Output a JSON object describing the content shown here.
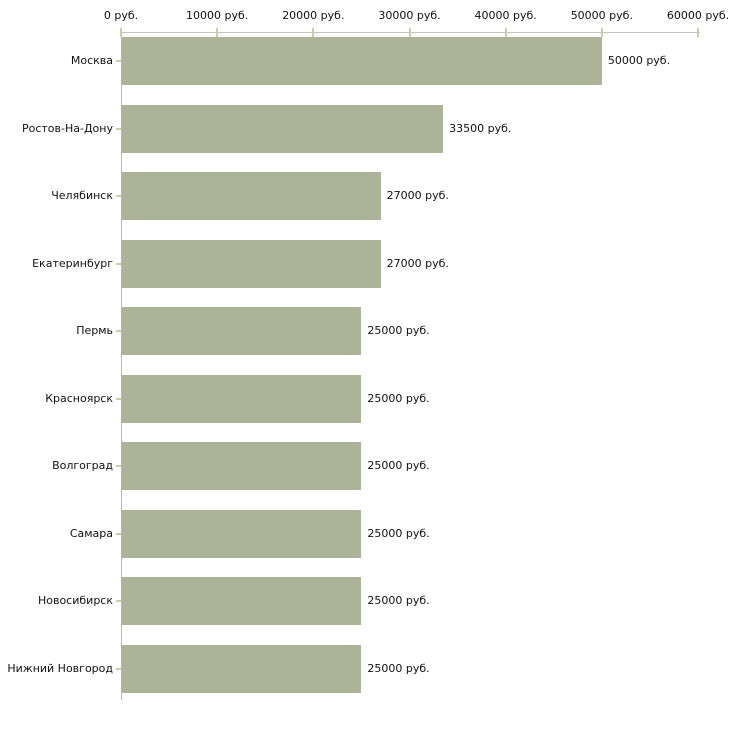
{
  "chart_data": {
    "type": "bar",
    "orientation": "horizontal",
    "title": "",
    "xlabel": "",
    "ylabel": "",
    "unit_suffix": " руб.",
    "categories": [
      "Москва",
      "Ростов-На-Дону",
      "Челябинск",
      "Екатеринбург",
      "Пермь",
      "Красноярск",
      "Волгоград",
      "Самара",
      "Новосибирск",
      "Нижний Новгород"
    ],
    "values": [
      50000,
      33500,
      27000,
      27000,
      25000,
      25000,
      25000,
      25000,
      25000,
      25000
    ],
    "value_labels": [
      "50000 руб.",
      "33500 руб.",
      "27000 руб.",
      "27000 руб.",
      "25000 руб.",
      "25000 руб.",
      "25000 руб.",
      "25000 руб.",
      "25000 руб.",
      "25000 руб."
    ],
    "x_axis": {
      "position": "top",
      "min": 0,
      "max": 60000,
      "ticks": [
        0,
        10000,
        20000,
        30000,
        40000,
        50000,
        60000
      ],
      "tick_labels": [
        "0 руб.",
        "10000 руб.",
        "20000 руб.",
        "30000 руб.",
        "40000 руб.",
        "50000 руб.",
        "60000 руб."
      ]
    },
    "grid": false,
    "legend": false,
    "colors": {
      "bar_fill": "#acb398",
      "axis_line_horizontal": "#c4c4c4",
      "axis_line_vertical": "#b6b6b6",
      "tick_mark": "#cbcda6",
      "text": "#111111",
      "background": "#ffffff"
    }
  }
}
